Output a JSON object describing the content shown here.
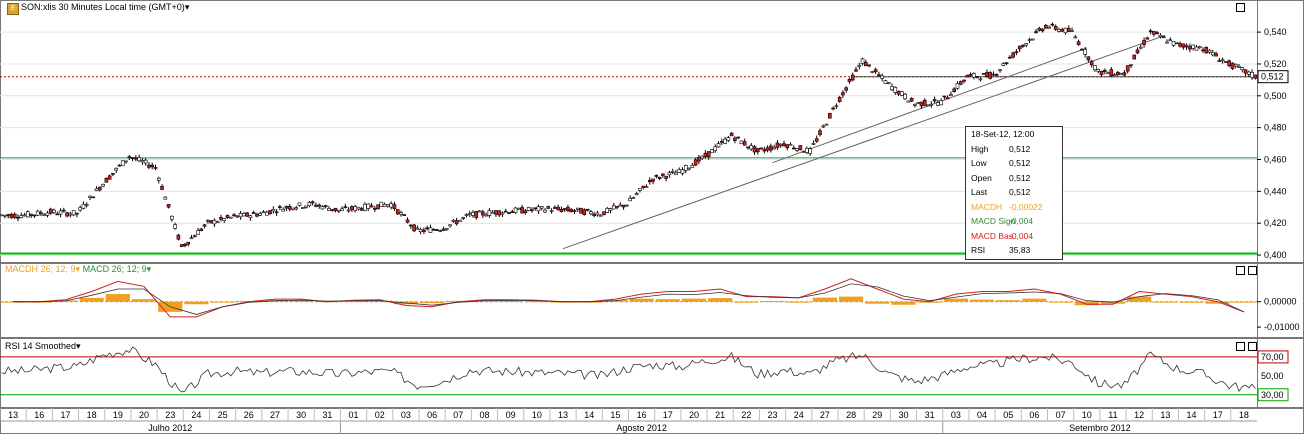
{
  "window": {
    "symbol": "SON:xlis",
    "title": "SON:xlis 30 Minutes Local time (GMT+0)",
    "dropdown_icon": "chevron-down-icon"
  },
  "price_panel": {
    "price_axis_ticks": [
      "0,540",
      "0,520",
      "0,500",
      "0,480",
      "0,460",
      "0,440",
      "0,420",
      "0,400"
    ],
    "current_price_label": "0,512"
  },
  "info_box": {
    "title": "18-Set-12, 12:00",
    "rows": [
      {
        "key": "High",
        "value": "0,512",
        "color": "#000000"
      },
      {
        "key": "Low",
        "value": "0,512",
        "color": "#000000"
      },
      {
        "key": "Open",
        "value": "0,512",
        "color": "#000000"
      },
      {
        "key": "Last",
        "value": "0,512",
        "color": "#000000"
      },
      {
        "key": "MACDH",
        "value": "-0,00022",
        "color": "#f0a020"
      },
      {
        "key": "MACD Sign",
        "value": "-0,004",
        "color": "#2e8b2e"
      },
      {
        "key": "MACD Bas",
        "value": "-0,004",
        "color": "#d02020"
      },
      {
        "key": "RSI",
        "value": "35,83",
        "color": "#000000"
      }
    ]
  },
  "macd_panel": {
    "title_h": "MACDH 26; 12; 9",
    "title_s": "MACD 26; 12; 9",
    "axis_ticks": [
      "0,00000",
      "-0,01000"
    ]
  },
  "rsi_panel": {
    "title": "RSI 14 Smoothed",
    "axis_ticks": [
      "70,00",
      "50,00",
      "30,00"
    ]
  },
  "time_axis": {
    "days": [
      "13",
      "16",
      "17",
      "18",
      "19",
      "20",
      "23",
      "24",
      "25",
      "26",
      "27",
      "30",
      "31",
      "01",
      "02",
      "03",
      "06",
      "07",
      "08",
      "09",
      "10",
      "13",
      "14",
      "15",
      "16",
      "17",
      "20",
      "21",
      "22",
      "23",
      "24",
      "27",
      "28",
      "29",
      "30",
      "31",
      "03",
      "04",
      "05",
      "06",
      "07",
      "10",
      "11",
      "12",
      "13",
      "14",
      "17",
      "18"
    ],
    "months": [
      "Julho 2012",
      "Agosto 2012",
      "Setembro 2012"
    ]
  },
  "colors": {
    "up_candle": "#ffffff",
    "down_candle": "#d02020",
    "macdh": "#f0a020",
    "macd_sig": "#2e8b2e",
    "macd_base": "#d02020",
    "rsi_upper": "#c00000",
    "rsi_lower": "#00a000",
    "support": "#00c000",
    "resistance": "#2e8b57",
    "current": "#c00000"
  },
  "chart_data": {
    "type": "line",
    "x_labels": [
      "13",
      "16",
      "17",
      "18",
      "19",
      "20",
      "23",
      "24",
      "25",
      "26",
      "27",
      "30",
      "31",
      "01",
      "02",
      "03",
      "06",
      "07",
      "08",
      "09",
      "10",
      "13",
      "14",
      "15",
      "16",
      "17",
      "20",
      "21",
      "22",
      "23",
      "24",
      "27",
      "28",
      "29",
      "30",
      "31",
      "03",
      "04",
      "05",
      "06",
      "07",
      "10",
      "11",
      "12",
      "13",
      "14",
      "17",
      "18"
    ],
    "series": [
      {
        "name": "SON:xlis",
        "values": [
          0.425,
          0.427,
          0.426,
          0.445,
          0.462,
          0.455,
          0.405,
          0.42,
          0.424,
          0.426,
          0.43,
          0.432,
          0.428,
          0.43,
          0.432,
          0.415,
          0.417,
          0.425,
          0.427,
          0.428,
          0.429,
          0.428,
          0.426,
          0.432,
          0.448,
          0.452,
          0.462,
          0.475,
          0.465,
          0.47,
          0.465,
          0.495,
          0.522,
          0.507,
          0.495,
          0.496,
          0.512,
          0.513,
          0.53,
          0.544,
          0.54,
          0.515,
          0.514,
          0.54,
          0.532,
          0.53,
          0.52,
          0.512
        ]
      },
      {
        "name": "RSI 14 Smoothed",
        "values": [
          55,
          58,
          60,
          72,
          78,
          62,
          30,
          52,
          55,
          53,
          55,
          54,
          52,
          54,
          55,
          40,
          45,
          56,
          55,
          54,
          53,
          52,
          50,
          58,
          62,
          60,
          66,
          70,
          52,
          56,
          52,
          66,
          72,
          52,
          44,
          50,
          60,
          62,
          68,
          70,
          64,
          42,
          40,
          72,
          58,
          52,
          40,
          36
        ]
      }
    ],
    "macd": {
      "macdh": [
        0.0,
        0.0,
        0.0005,
        0.0015,
        0.003,
        0.001,
        -0.004,
        -0.001,
        0.0,
        0.0003,
        0.0006,
        0.0004,
        0.0002,
        0.0003,
        0.0004,
        -0.001,
        -0.0006,
        0.0003,
        0.0004,
        0.0003,
        0.0002,
        0.0,
        0.0,
        0.0006,
        0.0012,
        0.001,
        0.0012,
        0.0014,
        -0.0004,
        0.0003,
        0.0,
        0.0016,
        0.002,
        -0.0008,
        -0.0012,
        -0.0004,
        0.0012,
        0.0008,
        0.0006,
        0.0012,
        -0.0002,
        -0.0014,
        -0.0008,
        0.002,
        -0.0002,
        -0.0004,
        -0.0008,
        -0.0002
      ],
      "macd": [
        0.0,
        0.0,
        0.0008,
        0.004,
        0.008,
        0.006,
        -0.006,
        -0.006,
        -0.002,
        0.0,
        0.001,
        0.001,
        0.0,
        0.0006,
        0.0008,
        -0.0015,
        -0.002,
        0.0,
        0.0008,
        0.0008,
        0.0006,
        0.0,
        0.0,
        0.001,
        0.003,
        0.004,
        0.004,
        0.005,
        0.002,
        0.002,
        0.0015,
        0.005,
        0.009,
        0.005,
        0.001,
        0.0,
        0.003,
        0.004,
        0.004,
        0.005,
        0.003,
        -0.001,
        -0.001,
        0.004,
        0.003,
        0.002,
        0.0,
        -0.004
      ],
      "signal": [
        0.0,
        0.0,
        0.0003,
        0.0025,
        0.005,
        0.005,
        -0.002,
        -0.005,
        -0.002,
        -0.0003,
        0.0004,
        0.0006,
        0.0002,
        0.0003,
        0.0004,
        -0.0005,
        -0.0014,
        -0.0003,
        0.0004,
        0.0005,
        0.0004,
        0.0,
        0.0,
        0.0004,
        0.0018,
        0.003,
        0.0028,
        0.0036,
        0.0024,
        0.0017,
        0.0015,
        0.0034,
        0.007,
        0.0058,
        0.0022,
        0.0004,
        0.0018,
        0.0032,
        0.0034,
        0.0038,
        0.0032,
        0.0004,
        -0.0002,
        0.002,
        0.0032,
        0.0024,
        0.0008,
        -0.004
      ]
    },
    "ylim": [
      0.395,
      0.552
    ],
    "macd_ylim": [
      -0.0135,
      0.0105
    ],
    "rsi_ylim": [
      16,
      90
    ],
    "reference_lines": {
      "support": 0.401,
      "resistance": 0.461,
      "current": 0.512,
      "rsi_upper": 70,
      "rsi_lower": 30
    }
  }
}
